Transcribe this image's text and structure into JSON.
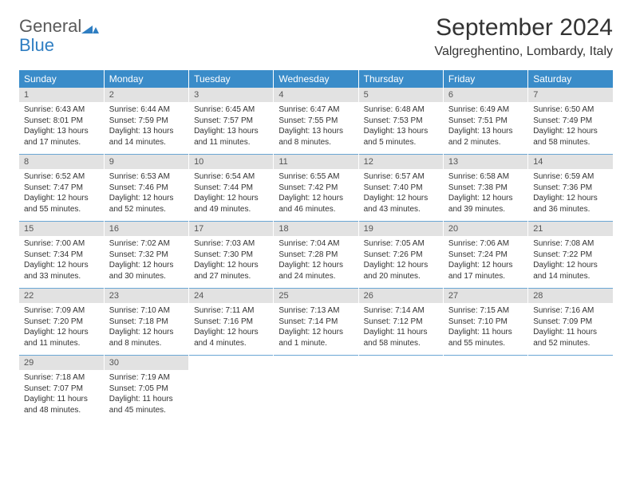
{
  "logo": {
    "text1": "General",
    "text2": "Blue",
    "color1": "#5a5a5a",
    "color2": "#2f7ec2",
    "mark_color": "#2f7ec2"
  },
  "title": "September 2024",
  "subtitle": "Valgreghentino, Lombardy, Italy",
  "colors": {
    "header_bg": "#3a8cc9",
    "header_text": "#ffffff",
    "daynum_bg": "#e2e2e2",
    "daynum_text": "#555555",
    "body_text": "#333333",
    "week_sep": "#6aa6d4",
    "page_bg": "#ffffff"
  },
  "fontsize": {
    "title": 30,
    "subtitle": 16,
    "dayhead": 12,
    "daynum": 11,
    "cell": 10
  },
  "day_headers": [
    "Sunday",
    "Monday",
    "Tuesday",
    "Wednesday",
    "Thursday",
    "Friday",
    "Saturday"
  ],
  "weeks": [
    {
      "nums": [
        "1",
        "2",
        "3",
        "4",
        "5",
        "6",
        "7"
      ],
      "cells": [
        {
          "sunrise": "Sunrise: 6:43 AM",
          "sunset": "Sunset: 8:01 PM",
          "day1": "Daylight: 13 hours",
          "day2": "and 17 minutes."
        },
        {
          "sunrise": "Sunrise: 6:44 AM",
          "sunset": "Sunset: 7:59 PM",
          "day1": "Daylight: 13 hours",
          "day2": "and 14 minutes."
        },
        {
          "sunrise": "Sunrise: 6:45 AM",
          "sunset": "Sunset: 7:57 PM",
          "day1": "Daylight: 13 hours",
          "day2": "and 11 minutes."
        },
        {
          "sunrise": "Sunrise: 6:47 AM",
          "sunset": "Sunset: 7:55 PM",
          "day1": "Daylight: 13 hours",
          "day2": "and 8 minutes."
        },
        {
          "sunrise": "Sunrise: 6:48 AM",
          "sunset": "Sunset: 7:53 PM",
          "day1": "Daylight: 13 hours",
          "day2": "and 5 minutes."
        },
        {
          "sunrise": "Sunrise: 6:49 AM",
          "sunset": "Sunset: 7:51 PM",
          "day1": "Daylight: 13 hours",
          "day2": "and 2 minutes."
        },
        {
          "sunrise": "Sunrise: 6:50 AM",
          "sunset": "Sunset: 7:49 PM",
          "day1": "Daylight: 12 hours",
          "day2": "and 58 minutes."
        }
      ]
    },
    {
      "nums": [
        "8",
        "9",
        "10",
        "11",
        "12",
        "13",
        "14"
      ],
      "cells": [
        {
          "sunrise": "Sunrise: 6:52 AM",
          "sunset": "Sunset: 7:47 PM",
          "day1": "Daylight: 12 hours",
          "day2": "and 55 minutes."
        },
        {
          "sunrise": "Sunrise: 6:53 AM",
          "sunset": "Sunset: 7:46 PM",
          "day1": "Daylight: 12 hours",
          "day2": "and 52 minutes."
        },
        {
          "sunrise": "Sunrise: 6:54 AM",
          "sunset": "Sunset: 7:44 PM",
          "day1": "Daylight: 12 hours",
          "day2": "and 49 minutes."
        },
        {
          "sunrise": "Sunrise: 6:55 AM",
          "sunset": "Sunset: 7:42 PM",
          "day1": "Daylight: 12 hours",
          "day2": "and 46 minutes."
        },
        {
          "sunrise": "Sunrise: 6:57 AM",
          "sunset": "Sunset: 7:40 PM",
          "day1": "Daylight: 12 hours",
          "day2": "and 43 minutes."
        },
        {
          "sunrise": "Sunrise: 6:58 AM",
          "sunset": "Sunset: 7:38 PM",
          "day1": "Daylight: 12 hours",
          "day2": "and 39 minutes."
        },
        {
          "sunrise": "Sunrise: 6:59 AM",
          "sunset": "Sunset: 7:36 PM",
          "day1": "Daylight: 12 hours",
          "day2": "and 36 minutes."
        }
      ]
    },
    {
      "nums": [
        "15",
        "16",
        "17",
        "18",
        "19",
        "20",
        "21"
      ],
      "cells": [
        {
          "sunrise": "Sunrise: 7:00 AM",
          "sunset": "Sunset: 7:34 PM",
          "day1": "Daylight: 12 hours",
          "day2": "and 33 minutes."
        },
        {
          "sunrise": "Sunrise: 7:02 AM",
          "sunset": "Sunset: 7:32 PM",
          "day1": "Daylight: 12 hours",
          "day2": "and 30 minutes."
        },
        {
          "sunrise": "Sunrise: 7:03 AM",
          "sunset": "Sunset: 7:30 PM",
          "day1": "Daylight: 12 hours",
          "day2": "and 27 minutes."
        },
        {
          "sunrise": "Sunrise: 7:04 AM",
          "sunset": "Sunset: 7:28 PM",
          "day1": "Daylight: 12 hours",
          "day2": "and 24 minutes."
        },
        {
          "sunrise": "Sunrise: 7:05 AM",
          "sunset": "Sunset: 7:26 PM",
          "day1": "Daylight: 12 hours",
          "day2": "and 20 minutes."
        },
        {
          "sunrise": "Sunrise: 7:06 AM",
          "sunset": "Sunset: 7:24 PM",
          "day1": "Daylight: 12 hours",
          "day2": "and 17 minutes."
        },
        {
          "sunrise": "Sunrise: 7:08 AM",
          "sunset": "Sunset: 7:22 PM",
          "day1": "Daylight: 12 hours",
          "day2": "and 14 minutes."
        }
      ]
    },
    {
      "nums": [
        "22",
        "23",
        "24",
        "25",
        "26",
        "27",
        "28"
      ],
      "cells": [
        {
          "sunrise": "Sunrise: 7:09 AM",
          "sunset": "Sunset: 7:20 PM",
          "day1": "Daylight: 12 hours",
          "day2": "and 11 minutes."
        },
        {
          "sunrise": "Sunrise: 7:10 AM",
          "sunset": "Sunset: 7:18 PM",
          "day1": "Daylight: 12 hours",
          "day2": "and 8 minutes."
        },
        {
          "sunrise": "Sunrise: 7:11 AM",
          "sunset": "Sunset: 7:16 PM",
          "day1": "Daylight: 12 hours",
          "day2": "and 4 minutes."
        },
        {
          "sunrise": "Sunrise: 7:13 AM",
          "sunset": "Sunset: 7:14 PM",
          "day1": "Daylight: 12 hours",
          "day2": "and 1 minute."
        },
        {
          "sunrise": "Sunrise: 7:14 AM",
          "sunset": "Sunset: 7:12 PM",
          "day1": "Daylight: 11 hours",
          "day2": "and 58 minutes."
        },
        {
          "sunrise": "Sunrise: 7:15 AM",
          "sunset": "Sunset: 7:10 PM",
          "day1": "Daylight: 11 hours",
          "day2": "and 55 minutes."
        },
        {
          "sunrise": "Sunrise: 7:16 AM",
          "sunset": "Sunset: 7:09 PM",
          "day1": "Daylight: 11 hours",
          "day2": "and 52 minutes."
        }
      ]
    },
    {
      "nums": [
        "29",
        "30",
        "",
        "",
        "",
        "",
        ""
      ],
      "cells": [
        {
          "sunrise": "Sunrise: 7:18 AM",
          "sunset": "Sunset: 7:07 PM",
          "day1": "Daylight: 11 hours",
          "day2": "and 48 minutes."
        },
        {
          "sunrise": "Sunrise: 7:19 AM",
          "sunset": "Sunset: 7:05 PM",
          "day1": "Daylight: 11 hours",
          "day2": "and 45 minutes."
        },
        {
          "sunrise": "",
          "sunset": "",
          "day1": "",
          "day2": ""
        },
        {
          "sunrise": "",
          "sunset": "",
          "day1": "",
          "day2": ""
        },
        {
          "sunrise": "",
          "sunset": "",
          "day1": "",
          "day2": ""
        },
        {
          "sunrise": "",
          "sunset": "",
          "day1": "",
          "day2": ""
        },
        {
          "sunrise": "",
          "sunset": "",
          "day1": "",
          "day2": ""
        }
      ]
    }
  ]
}
